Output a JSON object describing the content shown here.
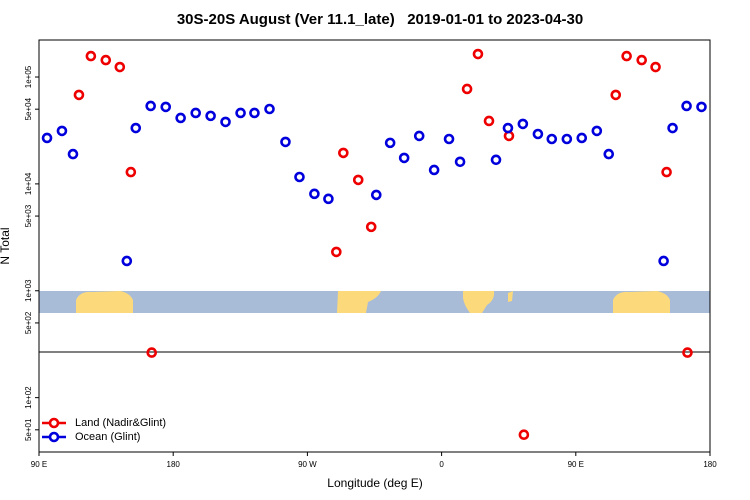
{
  "chart_data": {
    "type": "scatter",
    "title": "30S-20S August (Ver 11.1_late)   2019-01-01 to 2023-04-30",
    "x_label": "Longitude (deg E)",
    "y_label": "N Total",
    "log_y": true,
    "legend": "lower left",
    "xlim": [
      90,
      540
    ],
    "xticks": [
      {
        "value": 90,
        "label": "90 E"
      },
      {
        "value": 180,
        "label": "180"
      },
      {
        "value": 270,
        "label": "90 W"
      },
      {
        "value": 360,
        "label": "0"
      },
      {
        "value": 450,
        "label": "90 E"
      },
      {
        "value": 540,
        "label": "180"
      }
    ],
    "ylim": [
      31,
      222000
    ],
    "yticks": [
      {
        "value": 100000,
        "label": "1e+05"
      },
      {
        "value": 50000,
        "label": "5e+04"
      },
      {
        "value": 10000,
        "label": "1e+04"
      },
      {
        "value": 5000,
        "label": "5e+03"
      },
      {
        "value": 1000,
        "label": "1e+03"
      },
      {
        "value": 500,
        "label": "5e+02"
      },
      {
        "value": 100,
        "label": "1e+02"
      },
      {
        "value": 50,
        "label": "5e+01"
      }
    ],
    "series": [
      {
        "name": "Land (Nadir&Glint)",
        "color": "#ee0000",
        "x": [
          116.8,
          124.8,
          134.8,
          144.2,
          151.6,
          165.6,
          289.4,
          294.1,
          304.1,
          312.8,
          377.1,
          384.4,
          391.8,
          405.2,
          415.2,
          476.8,
          484.1,
          494.2,
          503.5,
          510.9,
          524.9
        ],
        "values": [
          68000,
          157000,
          144000,
          124000,
          12900,
          264,
          2310,
          19500,
          10900,
          3960,
          77300,
          164000,
          38800,
          28100,
          45,
          68000,
          157000,
          144000,
          124000,
          12900,
          264
        ]
      },
      {
        "name": "Ocean (Glint)",
        "color": "#0000dd",
        "x": [
          95.4,
          105.4,
          112.8,
          148.9,
          154.9,
          164.9,
          175.0,
          185.0,
          195.1,
          205.1,
          215.1,
          225.2,
          234.5,
          244.6,
          255.3,
          264.7,
          274.7,
          284.1,
          316.2,
          325.5,
          334.9,
          345.0,
          355.0,
          365.0,
          372.4,
          396.5,
          404.5,
          414.5,
          424.6,
          433.9,
          444.0,
          454.0,
          464.1,
          472.1,
          508.9,
          514.9,
          524.3,
          534.3
        ],
        "values": [
          26900,
          31300,
          19000,
          1900,
          33300,
          53600,
          52500,
          41400,
          46100,
          43300,
          38000,
          46100,
          46100,
          50200,
          24700,
          11600,
          8070,
          7250,
          7890,
          24200,
          17500,
          28100,
          13500,
          26300,
          16100,
          16800,
          33300,
          36400,
          29300,
          26300,
          26300,
          26900,
          31300,
          19000,
          1900,
          33300,
          53600,
          52500
        ]
      }
    ]
  }
}
